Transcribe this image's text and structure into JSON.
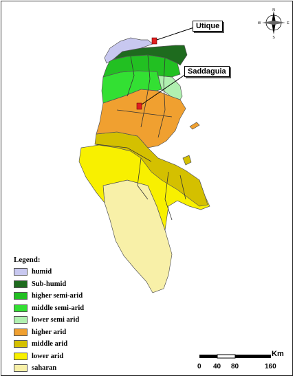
{
  "cities": [
    {
      "name": "Utique"
    },
    {
      "name": "Saddaguia"
    }
  ],
  "legend": {
    "title": "Legend:",
    "items": [
      {
        "label": "humid",
        "color": "#c8c8f0"
      },
      {
        "label": "Sub-humid",
        "color": "#1e6b1e"
      },
      {
        "label": "higher semi-arid",
        "color": "#22c022"
      },
      {
        "label": " middle semi-arid",
        "color": "#33e033"
      },
      {
        "label": "lower semi arid",
        "color": "#b0f0b0"
      },
      {
        "label": "higher arid",
        "color": "#f0a030"
      },
      {
        "label": "middle arid",
        "color": "#d4c000"
      },
      {
        "label": "lower arid",
        "color": "#f8f000"
      },
      {
        "label": "saharan",
        "color": "#f8f0a8"
      }
    ]
  },
  "scale": {
    "unit": "Km",
    "ticks": [
      "0",
      "40",
      "80",
      "160"
    ]
  },
  "compass": {
    "n": "N",
    "s": "S",
    "e": "E",
    "w": "W"
  }
}
